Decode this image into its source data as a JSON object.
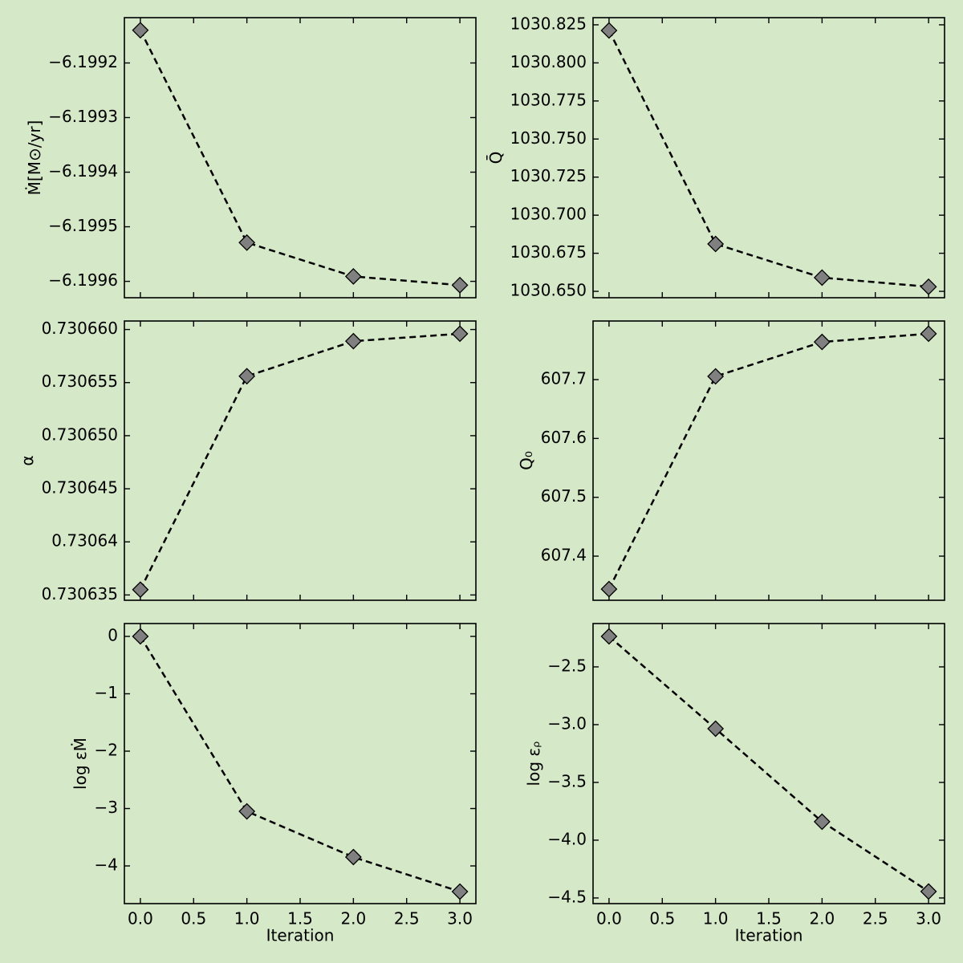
{
  "chart_data": [
    {
      "type": "line",
      "ylabel": "Ṁ[M⊙/yr]",
      "x": [
        0,
        1,
        2,
        3
      ],
      "values": [
        -6.19914,
        -6.199529,
        -6.199591,
        -6.199607
      ],
      "color": "#000000",
      "marker_color": "#808080",
      "xlim": [
        -0.15,
        3.15
      ],
      "xticks": [
        0,
        0.5,
        1,
        1.5,
        2,
        2.5,
        3
      ],
      "ylim": [
        -6.19963,
        -6.199117
      ],
      "yticks": [
        {
          "value": -6.1992,
          "label": "−6.1992"
        },
        {
          "value": -6.1993,
          "label": "−6.1993"
        },
        {
          "value": -6.1994,
          "label": "−6.1994"
        },
        {
          "value": -6.1995,
          "label": "−6.1995"
        },
        {
          "value": -6.1996,
          "label": "−6.1996"
        }
      ]
    },
    {
      "type": "line",
      "ylabel": "Q̄",
      "x": [
        0,
        1,
        2,
        3
      ],
      "values": [
        1030.8213,
        1030.6811,
        1030.659,
        1030.653
      ],
      "color": "#000000",
      "marker_color": "#808080",
      "xlim": [
        -0.15,
        3.15
      ],
      "xticks": [
        0,
        0.5,
        1,
        1.5,
        2,
        2.5,
        3
      ],
      "ylim": [
        1030.6458,
        1030.8297
      ],
      "yticks": [
        {
          "value": 1030.65,
          "label": "1030.650"
        },
        {
          "value": 1030.675,
          "label": "1030.675"
        },
        {
          "value": 1030.7,
          "label": "1030.700"
        },
        {
          "value": 1030.725,
          "label": "1030.725"
        },
        {
          "value": 1030.75,
          "label": "1030.750"
        },
        {
          "value": 1030.775,
          "label": "1030.775"
        },
        {
          "value": 1030.8,
          "label": "1030.800"
        },
        {
          "value": 1030.825,
          "label": "1030.825"
        }
      ]
    },
    {
      "type": "line",
      "ylabel": "α",
      "x": [
        0,
        1,
        2,
        3
      ],
      "values": [
        0.7306355,
        0.7306556,
        0.7306589,
        0.7306596
      ],
      "color": "#000000",
      "marker_color": "#808080",
      "xlim": [
        -0.15,
        3.15
      ],
      "xticks": [
        0,
        0.5,
        1,
        1.5,
        2,
        2.5,
        3
      ],
      "ylim": [
        0.7306345,
        0.7306608
      ],
      "yticks": [
        0.730635,
        0.73064,
        {
          "value": 0.730645,
          "label": "0.730645"
        },
        {
          "value": 0.73065,
          "label": "0.730650"
        },
        {
          "value": 0.730655,
          "label": "0.730655"
        },
        {
          "value": 0.73066,
          "label": "0.730660"
        }
      ]
    },
    {
      "type": "line",
      "ylabel": "Q₀",
      "x": [
        0,
        1,
        2,
        3
      ],
      "values": [
        607.344,
        607.7055,
        607.764,
        607.778
      ],
      "color": "#000000",
      "marker_color": "#808080",
      "xlim": [
        -0.15,
        3.15
      ],
      "xticks": [
        0,
        0.5,
        1,
        1.5,
        2,
        2.5,
        3
      ],
      "ylim": [
        607.325,
        607.7996
      ],
      "yticks": [
        607.4,
        607.5,
        607.6,
        607.7
      ]
    },
    {
      "type": "line",
      "ylabel": "log εṀ",
      "xlabel": "Iteration",
      "x": [
        0,
        1,
        2,
        3
      ],
      "values": [
        0,
        -3.049,
        -3.846,
        -4.448
      ],
      "color": "#000000",
      "marker_color": "#808080",
      "xlim": [
        -0.15,
        3.15
      ],
      "xticks": [
        {
          "value": 0,
          "label": "0.0"
        },
        0.5,
        {
          "value": 1,
          "label": "1.0"
        },
        1.5,
        {
          "value": 2,
          "label": "2.0"
        },
        2.5,
        {
          "value": 3,
          "label": "3.0"
        }
      ],
      "ylim": [
        -4.657,
        0.224
      ],
      "yticks": [
        {
          "value": -4,
          "label": "−4"
        },
        {
          "value": -3,
          "label": "−3"
        },
        {
          "value": -2,
          "label": "−2"
        },
        {
          "value": -1,
          "label": "−1"
        },
        0
      ]
    },
    {
      "type": "line",
      "ylabel": "log εᵨ",
      "xlabel": "Iteration",
      "x": [
        0,
        1,
        2,
        3
      ],
      "values": [
        -2.236,
        -3.035,
        -3.84,
        -4.444
      ],
      "color": "#000000",
      "marker_color": "#808080",
      "xlim": [
        -0.15,
        3.15
      ],
      "xticks": [
        {
          "value": 0,
          "label": "0.0"
        },
        0.5,
        {
          "value": 1,
          "label": "1.0"
        },
        1.5,
        {
          "value": 2,
          "label": "2.0"
        },
        2.5,
        {
          "value": 3,
          "label": "3.0"
        }
      ],
      "ylim": [
        -4.549,
        -2.125
      ],
      "yticks": [
        {
          "value": -4.5,
          "label": "−4.5"
        },
        {
          "value": -4,
          "label": "−4.0"
        },
        {
          "value": -3.5,
          "label": "−3.5"
        },
        {
          "value": -3,
          "label": "−3.0"
        },
        {
          "value": -2.5,
          "label": "−2.5"
        }
      ]
    }
  ]
}
